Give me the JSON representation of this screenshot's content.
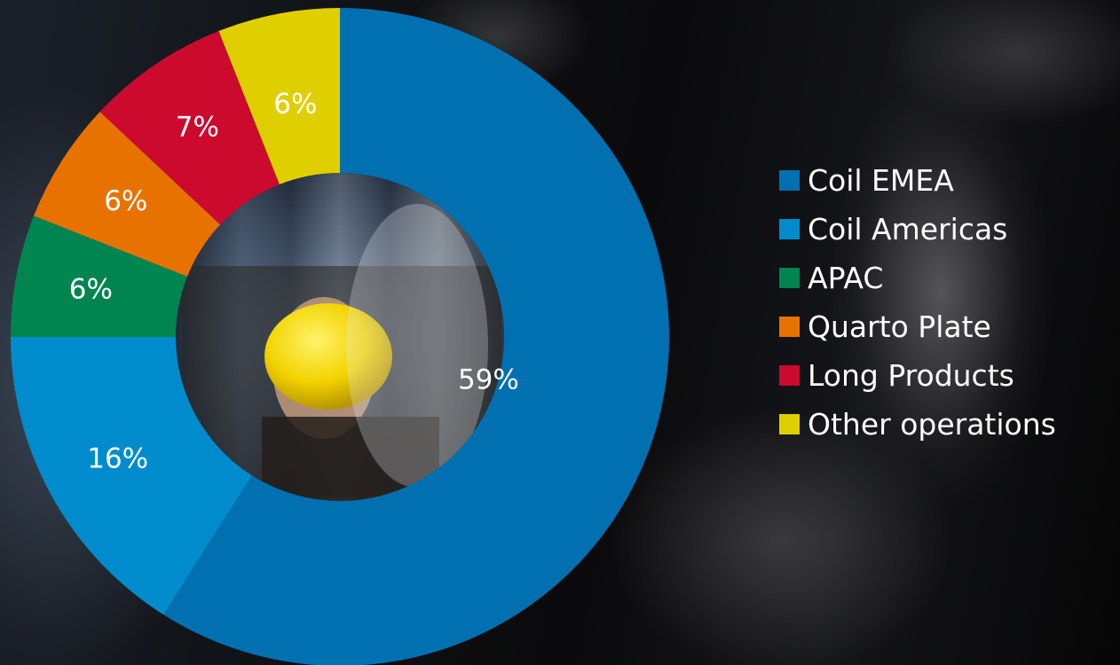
{
  "chart_data": {
    "type": "pie",
    "donut": true,
    "start_angle_deg": 0,
    "direction": "clockwise",
    "categories": [
      "Coil EMEA",
      "Coil Americas",
      "APAC",
      "Quarto Plate",
      "Long Products",
      "Other operations"
    ],
    "values": [
      59,
      16,
      6,
      6,
      7,
      6
    ],
    "value_labels": [
      "59%",
      "16%",
      "6%",
      "6%",
      "7%",
      "6%"
    ],
    "colors": [
      "#0070B0",
      "#008CCC",
      "#008550",
      "#E87200",
      "#CC0A2D",
      "#E0CF00"
    ],
    "legend_position": "right",
    "title": ""
  }
}
